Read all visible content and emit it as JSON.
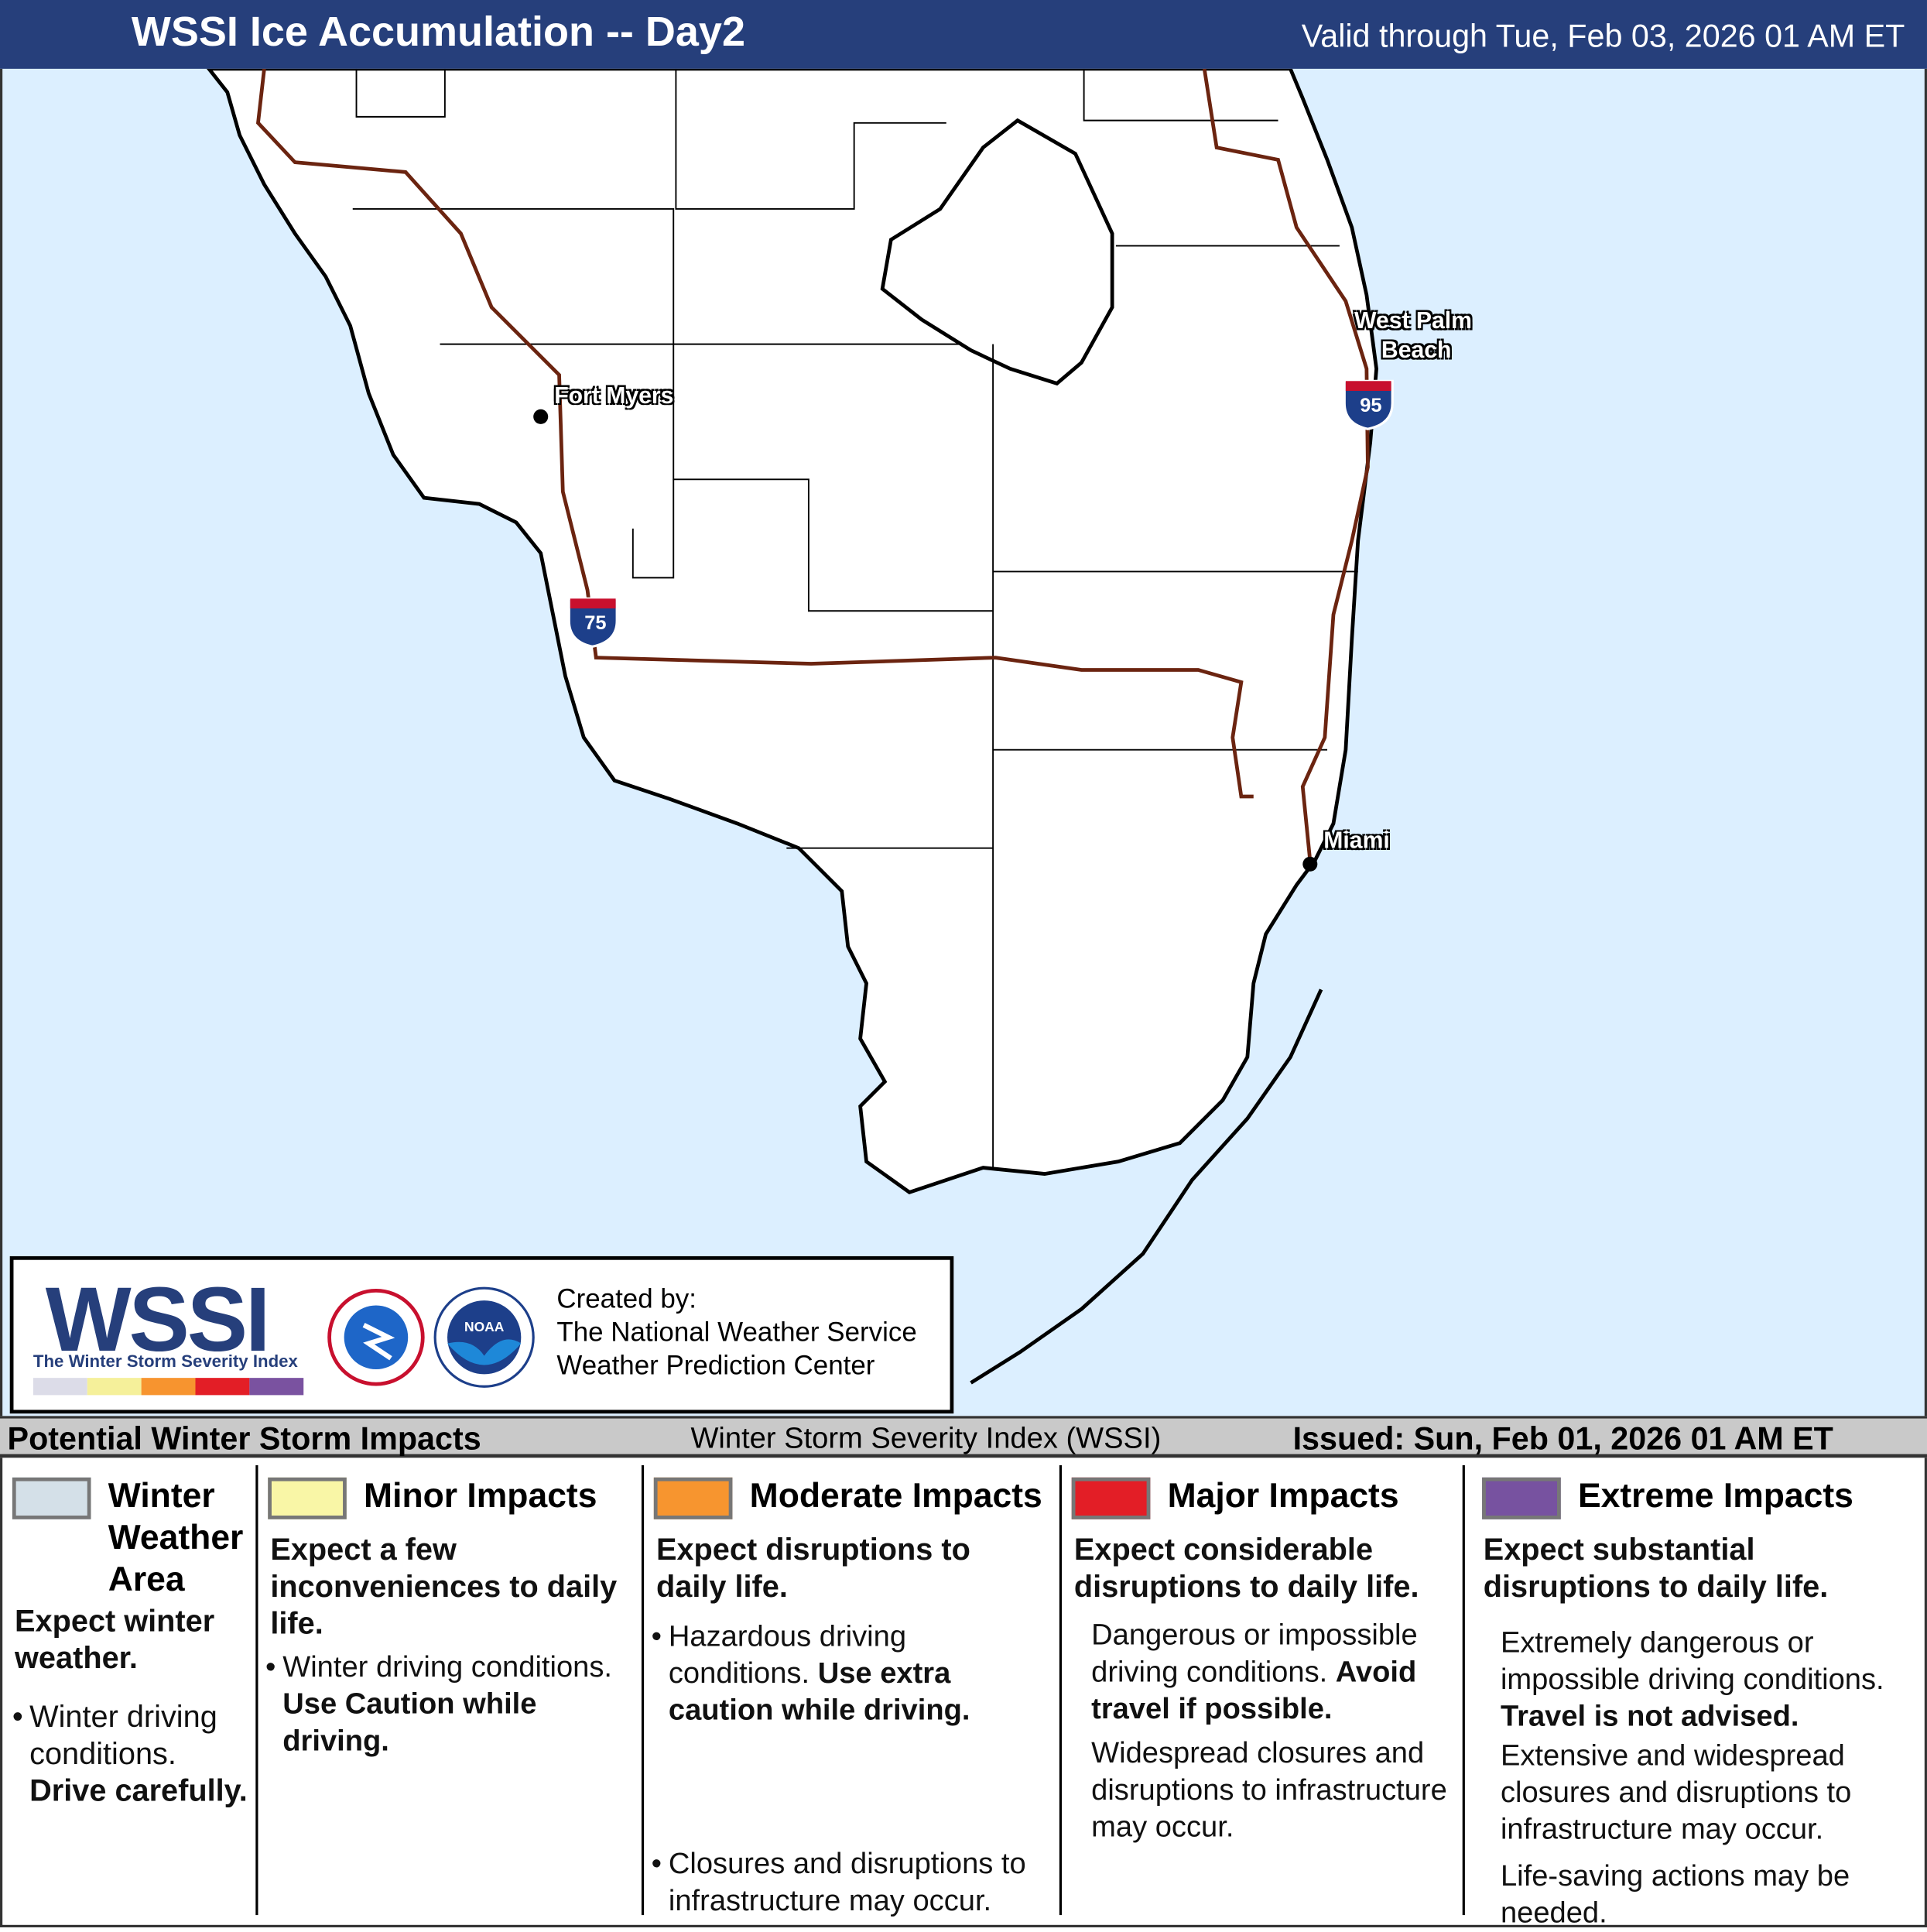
{
  "header": {
    "title": "WSSI Ice Accumulation -- Day2",
    "valid": "Valid through Tue, Feb 03, 2026 01 AM ET"
  },
  "map": {
    "land_color": "#ffffff",
    "water_color": "#dcefff",
    "road_color": "#6b2410",
    "cities": [
      {
        "name": "Fort Myers"
      },
      {
        "name": "West Palm Beach",
        "line1": "West Palm",
        "line2": "Beach"
      },
      {
        "name": "Miami"
      }
    ],
    "shields": [
      {
        "label": "75"
      },
      {
        "label": "95"
      }
    ]
  },
  "logo": {
    "wordmark": "WSSI",
    "tagline": "The Winter Storm Severity Index",
    "created_by": "Created by:",
    "org1": "The National Weather Service",
    "org2": "Weather Prediction Center",
    "nws_seal": "NATIONAL WEATHER SERVICE",
    "noaa_seal": "NOAA",
    "bar_colors": [
      "#dcdce8",
      "#f5f09a",
      "#f7942f",
      "#e31e26",
      "#7a52a0"
    ]
  },
  "band": {
    "left": "Potential Winter Storm Impacts",
    "middle": "Winter Storm Severity Index (WSSI)",
    "right": "Issued: Sun, Feb 01, 2026 01 AM ET"
  },
  "legend": [
    {
      "title": "Winter Weather Area",
      "t1": "Winter",
      "t2": "Weather",
      "t3": "Area",
      "color": "#d4e0e8",
      "lead": "Expect winter weather.",
      "b1": "Winter driving conditions.",
      "b1b": "Drive carefully."
    },
    {
      "title": "Minor Impacts",
      "color": "#f9f6a6",
      "lead": "Expect a few inconveniences to daily life.",
      "b1": "Winter driving conditions.",
      "b1b": "Use Caution while driving."
    },
    {
      "title": "Moderate Impacts",
      "color": "#f7952f",
      "lead": "Expect disruptions to daily life.",
      "b1": "Hazardous driving conditions.",
      "b1b": "Use extra caution while driving.",
      "b2": "Closures and disruptions to infrastructure may occur."
    },
    {
      "title": "Major Impacts",
      "color": "#e31e26",
      "lead": "Expect considerable disruptions to daily life.",
      "p1": "Dangerous or impossible driving conditions.",
      "p1b": "Avoid travel if possible.",
      "p2": "Widespread closures and disruptions to infrastructure may occur."
    },
    {
      "title": "Extreme Impacts",
      "color": "#7752a0",
      "lead": "Expect substantial disruptions to daily life.",
      "p1": "Extremely dangerous or impossible driving conditions.",
      "p1b": "Travel is not advised.",
      "p2": "Extensive and widespread closures and disruptions to infrastructure may occur.",
      "p3": "Life-saving actions may be needed."
    }
  ]
}
